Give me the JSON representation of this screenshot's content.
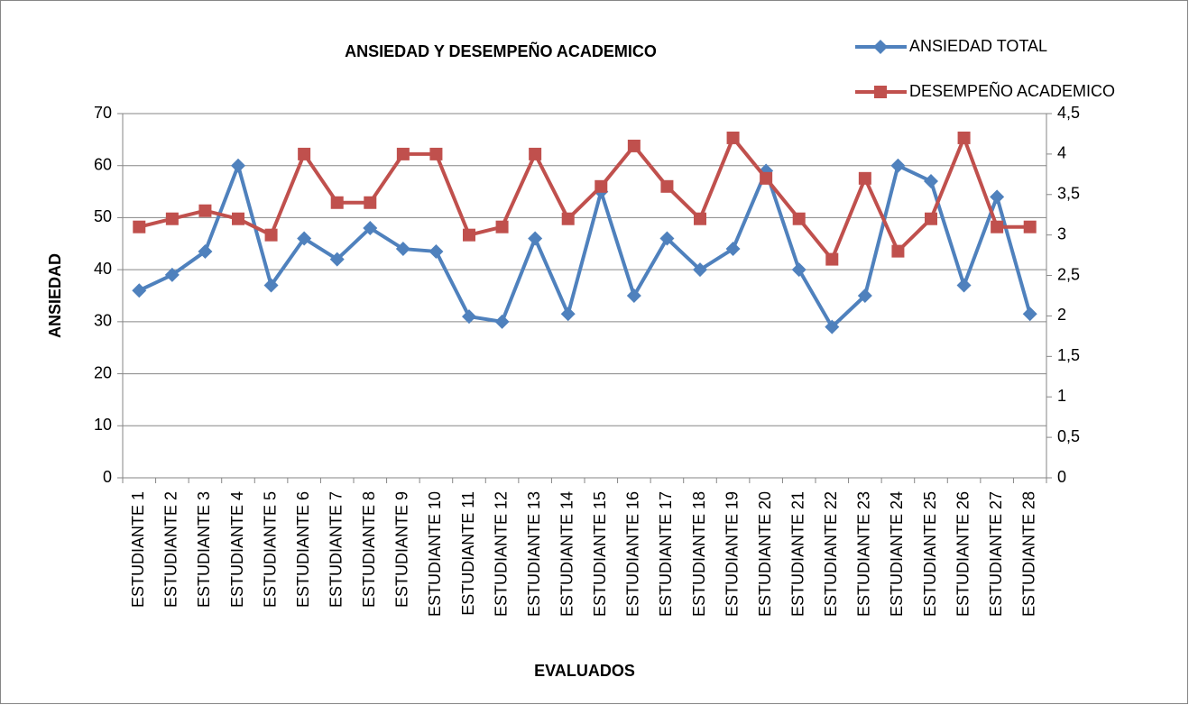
{
  "chart_data": {
    "type": "line",
    "title": "ANSIEDAD Y DESEMPEÑO  ACADEMICO",
    "xlabel": "EVALUADOS",
    "ylabel": "ANSIEDAD",
    "categories": [
      "ESTUDIANTE 1",
      "ESTUDIANTE 2",
      "ESTUDIANTE 3",
      "ESTUDIANTE 4",
      "ESTUDIANTE 5",
      "ESTUDIANTE 6",
      "ESTUDIANTE 7",
      "ESTUDIANTE 8",
      "ESTUDIANTE 9",
      "ESTUDIANTE 10",
      "ESTUDIANTE 11",
      "ESTUDIANTE 12",
      "ESTUDIANTE 13",
      "ESTUDIANTE 14",
      "ESTUDIANTE 15",
      "ESTUDIANTE 16",
      "ESTUDIANTE 17",
      "ESTUDIANTE 18",
      "ESTUDIANTE 19",
      "ESTUDIANTE 20",
      "ESTUDIANTE 21",
      "ESTUDIANTE 22",
      "ESTUDIANTE 23",
      "ESTUDIANTE 24",
      "ESTUDIANTE 25",
      "ESTUDIANTE 26",
      "ESTUDIANTE 27",
      "ESTUDIANTE 28"
    ],
    "series": [
      {
        "name": "ANSIEDAD TOTAL",
        "color": "#4f81bd",
        "marker": "diamond",
        "axis": "y",
        "values": [
          36,
          39,
          43.5,
          60,
          37,
          46,
          42,
          48,
          44,
          43.5,
          31,
          30,
          46,
          31.5,
          55,
          35,
          46,
          40,
          44,
          59,
          40,
          29,
          35,
          60,
          57,
          37,
          54,
          31.5
        ]
      },
      {
        "name": "DESEMPEÑO ACADEMICO",
        "color": "#c0504d",
        "marker": "square",
        "axis": "y2",
        "values": [
          3.1,
          3.2,
          3.3,
          3.2,
          3.0,
          4.0,
          3.4,
          3.4,
          4.0,
          4.0,
          3.0,
          3.1,
          4.0,
          3.2,
          3.6,
          4.1,
          3.6,
          3.2,
          4.2,
          3.7,
          3.2,
          2.7,
          3.7,
          2.8,
          3.2,
          4.2,
          3.1,
          3.1
        ]
      }
    ],
    "ylim": [
      0,
      70
    ],
    "yticks": [
      0,
      10,
      20,
      30,
      40,
      50,
      60,
      70
    ],
    "y2lim": [
      0,
      4.5
    ],
    "y2ticks": [
      0,
      {
        "value": 0.5,
        "label": "0,5"
      },
      1,
      {
        "value": 1.5,
        "label": "1,5"
      },
      2,
      {
        "value": 2.5,
        "label": "2,5"
      },
      3,
      {
        "value": 3.5,
        "label": "3,5"
      },
      4,
      {
        "value": 4.5,
        "label": "4,5"
      }
    ],
    "grid": true,
    "legend": "top-right"
  }
}
